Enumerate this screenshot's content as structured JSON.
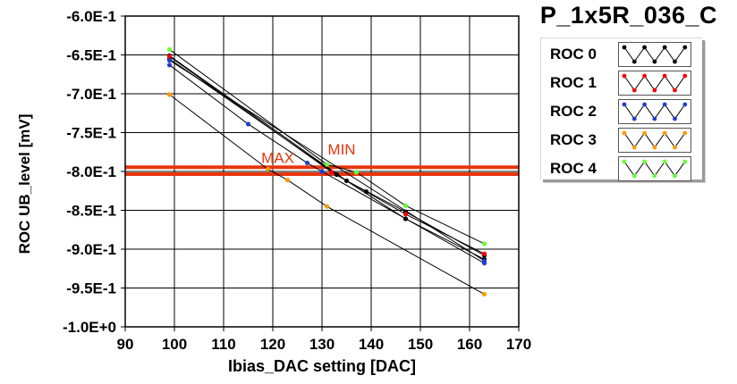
{
  "chart_data": {
    "type": "line",
    "title": "P_1x5R_036_C",
    "xlabel": "Ibias_DAC setting [DAC]",
    "ylabel": "ROC UB_level [mV]",
    "xlim": [
      90,
      170
    ],
    "ylim": [
      -1.0,
      -0.6
    ],
    "x_ticks": [
      90,
      100,
      110,
      120,
      130,
      140,
      150,
      160,
      170
    ],
    "y_ticks": [
      -0.6,
      -0.65,
      -0.7,
      -0.75,
      -0.8,
      -0.85,
      -0.9,
      -0.95,
      -1.0
    ],
    "x_tick_labels": [
      "90",
      "100",
      "110",
      "120",
      "130",
      "140",
      "150",
      "160",
      "170"
    ],
    "y_tick_labels": [
      "-6.0E-1",
      "-6.5E-1",
      "-7.0E-1",
      "-7.5E-1",
      "-8.0E-1",
      "-8.5E-1",
      "-9.0E-1",
      "-9.5E-1",
      "-1.0E+0"
    ],
    "grid": true,
    "legend_position": "top-right",
    "series": [
      {
        "name": "ROC 0",
        "color": "#000000",
        "points": [
          [
            99,
            -0.655
          ],
          [
            133,
            -0.804
          ],
          [
            147,
            -0.861
          ],
          [
            163,
            -0.913
          ],
          [
            99,
            -0.651
          ],
          [
            135,
            -0.812
          ],
          [
            147,
            -0.852
          ],
          [
            163,
            -0.908
          ],
          [
            139,
            -0.826
          ]
        ]
      },
      {
        "name": "ROC 1",
        "color": "#ff0000",
        "points": [
          [
            99,
            -0.652
          ],
          [
            132,
            -0.801
          ],
          [
            147,
            -0.855
          ],
          [
            163,
            -0.906
          ]
        ]
      },
      {
        "name": "ROC 2",
        "color": "#1f3fd0",
        "points": [
          [
            99,
            -0.663
          ],
          [
            115,
            -0.739
          ],
          [
            127,
            -0.789
          ],
          [
            130,
            -0.8
          ],
          [
            163,
            -0.918
          ],
          [
            99,
            -0.657
          ],
          [
            163,
            -0.915
          ]
        ]
      },
      {
        "name": "ROC 3",
        "color": "#ff9900",
        "points": [
          [
            99,
            -0.701
          ],
          [
            119,
            -0.797
          ],
          [
            123,
            -0.811
          ],
          [
            131,
            -0.845
          ],
          [
            163,
            -0.958
          ]
        ]
      },
      {
        "name": "ROC 4",
        "color": "#66ff33",
        "points": [
          [
            99,
            -0.643
          ],
          [
            131,
            -0.791
          ],
          [
            137,
            -0.801
          ],
          [
            147,
            -0.844
          ],
          [
            163,
            -0.893
          ]
        ]
      }
    ],
    "reference_lines": [
      {
        "y": -0.7945,
        "color": "#e8350d"
      },
      {
        "y": -0.8035,
        "color": "#e8350d"
      }
    ],
    "annotations": [
      {
        "text": "MAX",
        "x": 121,
        "y": -0.789,
        "color": "#e8350d"
      },
      {
        "text": "MIN",
        "x": 134,
        "y": -0.778,
        "color": "#e8350d"
      }
    ]
  }
}
